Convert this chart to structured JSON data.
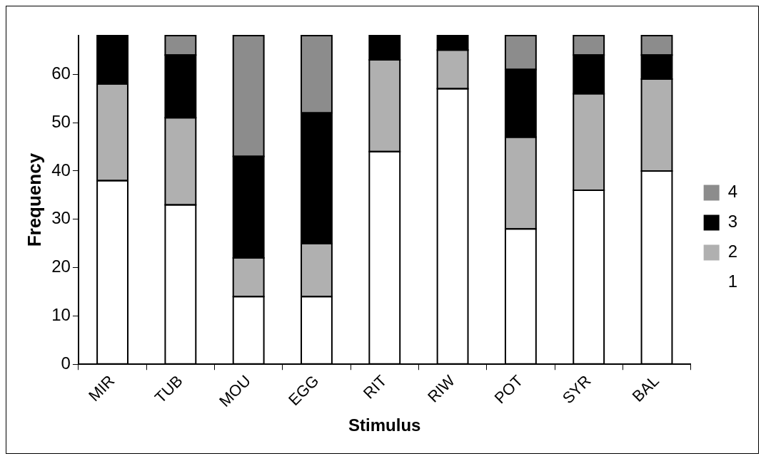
{
  "chart_data": {
    "type": "bar",
    "stacked": true,
    "xlabel": "Stimulus",
    "ylabel": "Frequency",
    "categories": [
      "MIR",
      "TUB",
      "MOU",
      "EGG",
      "RIT",
      "RIW",
      "POT",
      "SYR",
      "BAL"
    ],
    "ylim": [
      0,
      68
    ],
    "yticks": [
      0,
      10,
      20,
      30,
      40,
      50,
      60
    ],
    "grid": false,
    "legend": "right",
    "series": [
      {
        "name": "1",
        "color": "#ffffff",
        "values": [
          38,
          33,
          14,
          14,
          44,
          57,
          28,
          36,
          40
        ]
      },
      {
        "name": "2",
        "color": "#b0b0b0",
        "values": [
          20,
          18,
          8,
          11,
          19,
          8,
          19,
          20,
          19
        ]
      },
      {
        "name": "3",
        "color": "#000000",
        "values": [
          10,
          13,
          21,
          27,
          5,
          3,
          14,
          8,
          5
        ]
      },
      {
        "name": "4",
        "color": "#8c8c8c",
        "values": [
          0,
          4,
          25,
          16,
          0,
          0,
          7,
          4,
          4
        ]
      }
    ]
  }
}
